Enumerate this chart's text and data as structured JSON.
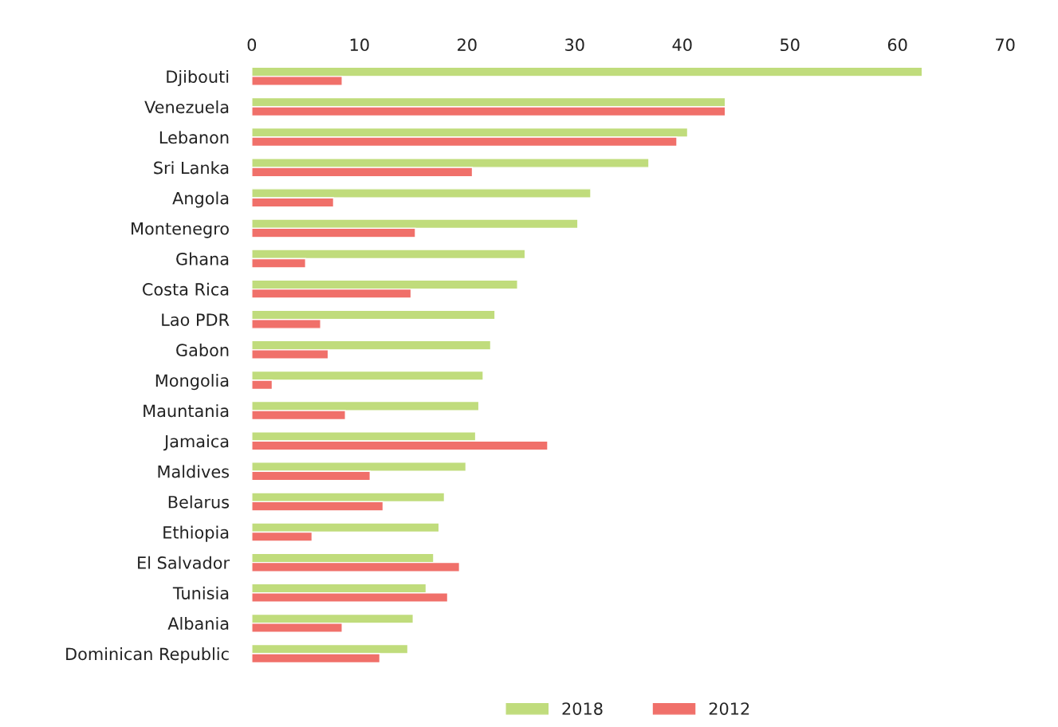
{
  "chart_data": {
    "type": "bar",
    "orientation": "horizontal",
    "categories": [
      "Djibouti",
      "Venezuela",
      "Lebanon",
      "Sri Lanka",
      "Angola",
      "Montenegro",
      "Ghana",
      "Costa Rica",
      "Lao PDR",
      "Gabon",
      "Mongolia",
      "Mauntania",
      "Jamaica",
      "Maldives",
      "Belarus",
      "Ethiopia",
      "El Salvador",
      "Tunisia",
      "Albania",
      "Dominican Republic"
    ],
    "series": [
      {
        "name": "2018",
        "color": "#c0dc7c",
        "values": [
          62.3,
          44.0,
          40.5,
          36.9,
          31.5,
          30.3,
          25.4,
          24.7,
          22.6,
          22.2,
          21.5,
          21.1,
          20.8,
          19.9,
          17.9,
          17.4,
          16.9,
          16.2,
          15.0,
          14.5
        ]
      },
      {
        "name": "2012",
        "color": "#f0706a",
        "values": [
          8.4,
          44.0,
          39.5,
          20.5,
          7.6,
          15.2,
          5.0,
          14.8,
          6.4,
          7.1,
          1.9,
          8.7,
          27.5,
          11.0,
          12.2,
          5.6,
          19.3,
          18.2,
          8.4,
          11.9
        ]
      }
    ],
    "xlim": [
      0,
      70
    ],
    "xticks": [
      0,
      10,
      20,
      30,
      40,
      50,
      60,
      70
    ],
    "grid": false,
    "legend": "bottom"
  }
}
